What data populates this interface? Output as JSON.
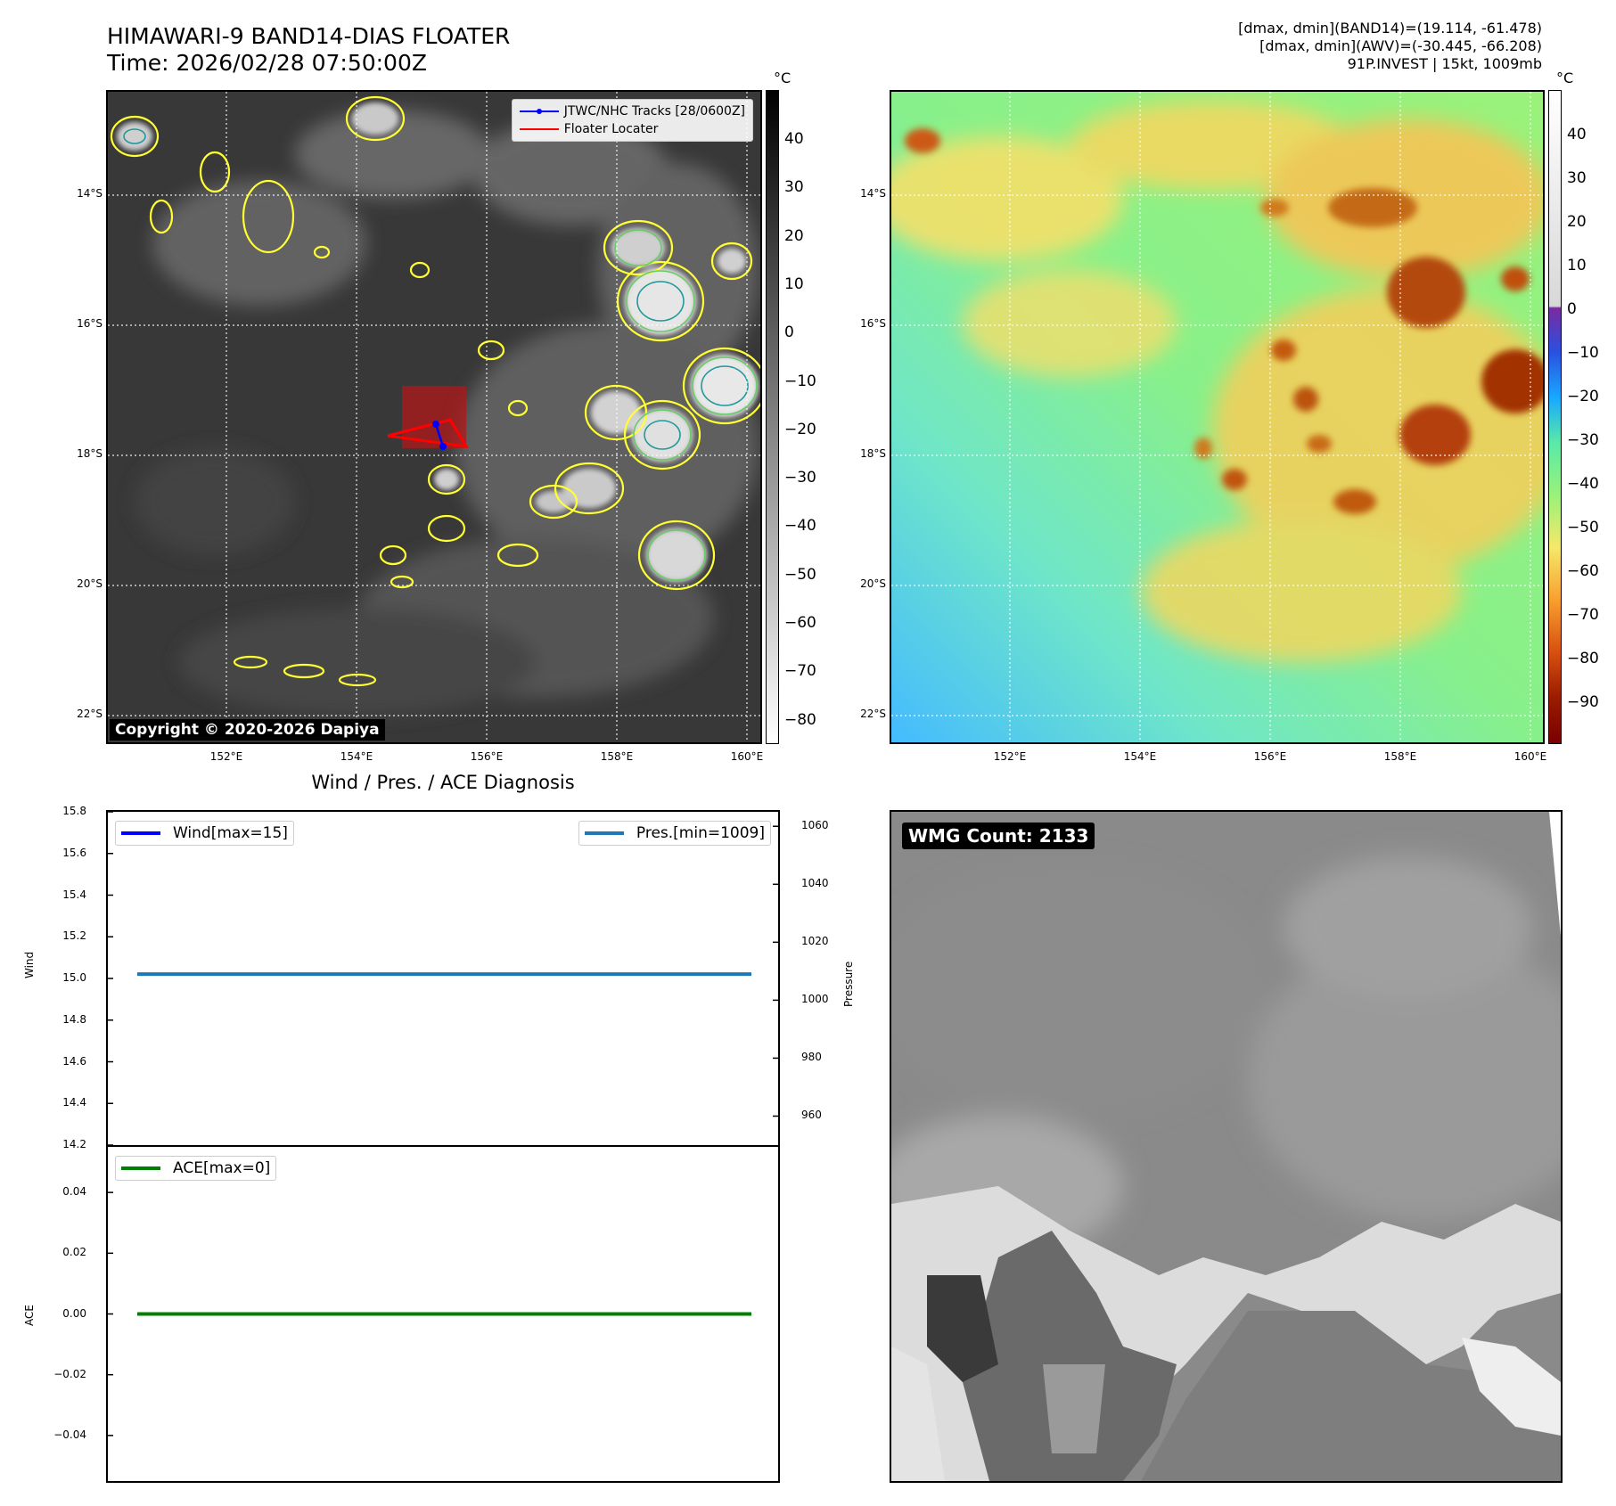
{
  "header": {
    "title_line1": "HIMAWARI-9 BAND14-DIAS FLOATER",
    "title_line2": "Time: 2026/02/28 07:50:00Z",
    "info_line1": "[dmax, dmin](BAND14)=(19.114, -61.478)",
    "info_line2": "[dmax, dmin](AWV)=(-30.445, -66.208)",
    "info_line3": "91P.INVEST | 15kt, 1009mb"
  },
  "map_axes": {
    "lat_labels": [
      "14°S",
      "16°S",
      "18°S",
      "20°S",
      "22°S"
    ],
    "lon_labels": [
      "152°E",
      "154°E",
      "156°E",
      "158°E",
      "160°E"
    ]
  },
  "ir_panel": {
    "legend": {
      "tracks": "JTWC/NHC Tracks [28/0600Z]",
      "locater": "Floater Locater"
    },
    "copyright": "Copyright © 2020-2026 Dapiya",
    "colorbar_unit": "°C",
    "colorbar_ticks": [
      "40",
      "30",
      "20",
      "10",
      "0",
      "−10",
      "−20",
      "−30",
      "−40",
      "−50",
      "−60",
      "−70",
      "−80"
    ]
  },
  "awv_panel": {
    "colorbar_unit": "°C",
    "colorbar_ticks": [
      "40",
      "30",
      "20",
      "10",
      "0",
      "−10",
      "−20",
      "−30",
      "−40",
      "−50",
      "−60",
      "−70",
      "−80",
      "−90"
    ]
  },
  "wmg_panel": {
    "count_label": "WMG Count: 2133"
  },
  "colors": {
    "wind": "#0000ff",
    "pressure": "#1f77b4",
    "ace": "#008000",
    "track": "#0000ff",
    "locater": "#ff0000"
  },
  "chart_data": [
    {
      "type": "line",
      "title": "Wind / Pres. / ACE Diagnosis",
      "ylabel": "Wind",
      "y2label": "Pressure",
      "ylim": [
        14.2,
        15.8
      ],
      "y2lim": [
        950,
        1065
      ],
      "yticks": [
        "15.8",
        "15.6",
        "15.4",
        "15.2",
        "15.0",
        "14.8",
        "14.6",
        "14.4",
        "14.2"
      ],
      "y2ticks": [
        "1060",
        "1040",
        "1020",
        "1000",
        "980",
        "960"
      ],
      "series": [
        {
          "name": "Wind[max=15]",
          "axis": "left",
          "values": [
            15,
            15
          ]
        },
        {
          "name": "Pres.[min=1009]",
          "axis": "right",
          "values": [
            1009,
            1009
          ]
        }
      ]
    },
    {
      "type": "line",
      "ylabel": "ACE",
      "ylim": [
        -0.055,
        0.055
      ],
      "yticks": [
        "0.04",
        "0.02",
        "0.00",
        "−0.02",
        "−0.04"
      ],
      "series": [
        {
          "name": "ACE[max=0]",
          "values": [
            0,
            0
          ]
        }
      ]
    }
  ]
}
